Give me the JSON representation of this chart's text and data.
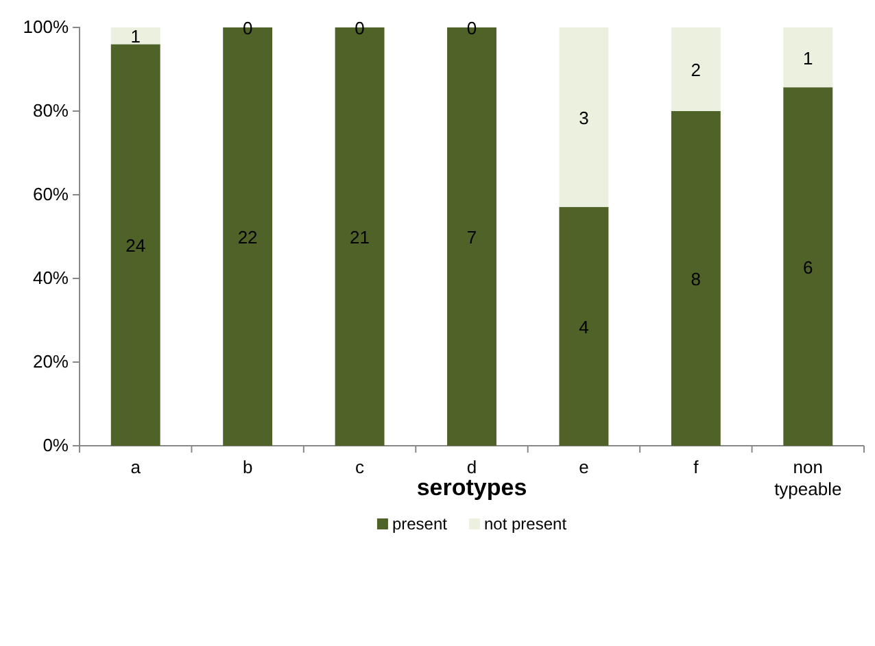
{
  "chart_data": {
    "type": "bar",
    "stacked": true,
    "xlabel": "serotypes",
    "categories": [
      "a",
      "b",
      "c",
      "d",
      "e",
      "f",
      "non typeable"
    ],
    "series": [
      {
        "name": "present",
        "color": "#4f6228",
        "values": [
          96,
          100,
          100,
          100,
          57.1,
          80,
          85.7
        ]
      },
      {
        "name": "not present",
        "color": "#ebf1de",
        "values": [
          4,
          0,
          0,
          0,
          42.9,
          20,
          14.3
        ]
      }
    ],
    "annotations": [
      "24",
      "22",
      "21",
      "7",
      "4",
      "8",
      "6",
      "1",
      "0",
      "0",
      "0",
      "3",
      "2",
      "1"
    ],
    "ylim": [
      0,
      100
    ],
    "yticks": [
      {
        "value": 0,
        "label": "0%"
      },
      {
        "value": 20,
        "label": "20%"
      },
      {
        "value": 40,
        "label": "40%"
      },
      {
        "value": 60,
        "label": "60%"
      },
      {
        "value": 80,
        "label": "80%"
      },
      {
        "value": 100,
        "label": "100%"
      }
    ],
    "legend": "bottom"
  }
}
